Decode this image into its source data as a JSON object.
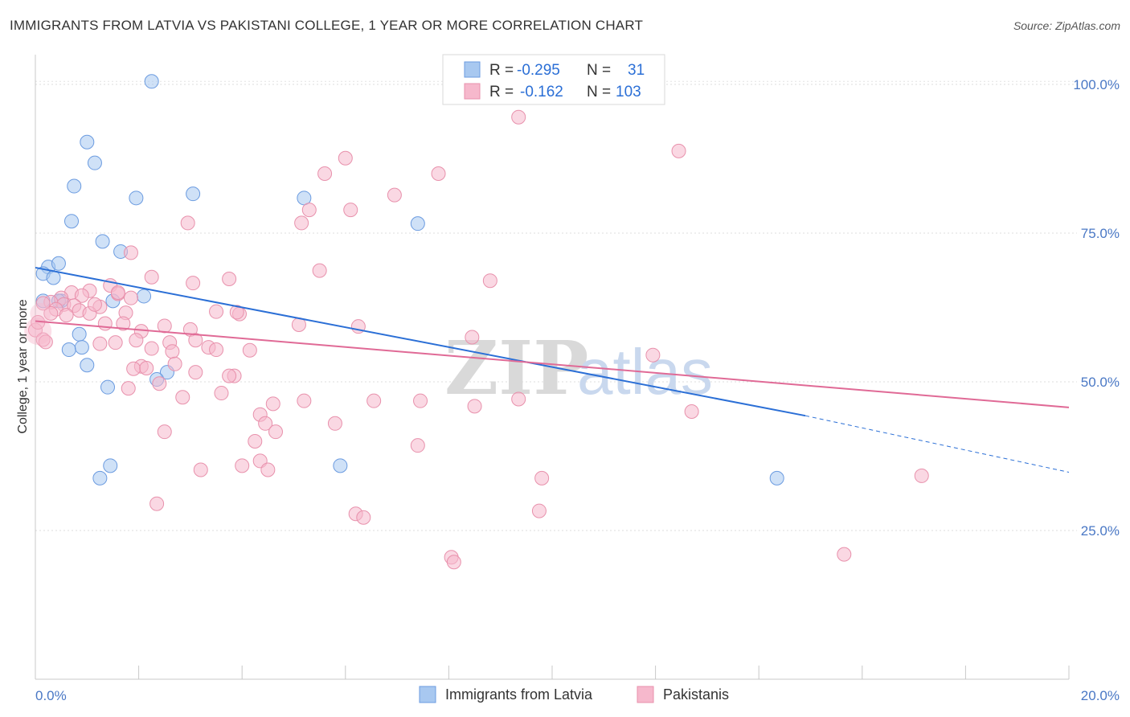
{
  "title": "IMMIGRANTS FROM LATVIA VS PAKISTANI COLLEGE, 1 YEAR OR MORE CORRELATION CHART",
  "source": "Source: ZipAtlas.com",
  "watermark": {
    "left": "ZIP",
    "right": "atlas"
  },
  "legend": {
    "rows": [
      {
        "r_label": "R =",
        "r_value": "-0.295",
        "n_label": "N =",
        "n_value": "31",
        "color": "#a8c8f0"
      },
      {
        "r_label": "R =",
        "r_value": "-0.162",
        "n_label": "N =",
        "n_value": "103",
        "color": "#f6b8cc"
      }
    ]
  },
  "bottom_legend": [
    {
      "label": "Immigrants from Latvia",
      "color": "#a8c8f0"
    },
    {
      "label": "Pakistanis",
      "color": "#f6b8cc"
    }
  ],
  "chart_data": {
    "type": "scatter",
    "ylabel": "College, 1 year or more",
    "xlabel": "",
    "xlim": [
      0,
      20
    ],
    "ylim": [
      0,
      105
    ],
    "x_ticks": [
      {
        "value": 0,
        "label": "0.0%"
      },
      {
        "value": 20,
        "label": "20.0%"
      }
    ],
    "y_ticks": [
      {
        "value": 25,
        "label": "25.0%"
      },
      {
        "value": 50,
        "label": "50.0%"
      },
      {
        "value": 75,
        "label": "75.0%"
      },
      {
        "value": 100,
        "label": "100.0%"
      }
    ],
    "grid": true,
    "series": [
      {
        "name": "Immigrants from Latvia",
        "color": "#a8c8f0",
        "stroke": "#6b9be0",
        "trend": {
          "x0": 0,
          "y0": 69.2,
          "x1": 14.9,
          "y1": 44.3,
          "dash_to_x": 20,
          "dash_to_y": 34.8,
          "color": "#2b6fd6"
        },
        "points": [
          [
            2.25,
            100.5
          ],
          [
            1.0,
            90.3
          ],
          [
            1.15,
            86.8
          ],
          [
            0.75,
            82.9
          ],
          [
            1.95,
            80.9
          ],
          [
            3.05,
            81.6
          ],
          [
            5.2,
            80.9
          ],
          [
            0.7,
            77.0
          ],
          [
            7.4,
            76.6
          ],
          [
            1.3,
            73.6
          ],
          [
            1.65,
            71.9
          ],
          [
            0.25,
            69.3
          ],
          [
            0.45,
            69.9
          ],
          [
            0.15,
            68.2
          ],
          [
            0.35,
            67.5
          ],
          [
            0.15,
            63.6
          ],
          [
            0.5,
            63.6
          ],
          [
            0.45,
            63.6
          ],
          [
            2.1,
            64.4
          ],
          [
            1.5,
            63.6
          ],
          [
            0.85,
            58.0
          ],
          [
            0.65,
            55.4
          ],
          [
            0.9,
            55.8
          ],
          [
            1.0,
            52.8
          ],
          [
            2.55,
            51.6
          ],
          [
            2.35,
            50.4
          ],
          [
            1.4,
            49.1
          ],
          [
            1.25,
            33.8
          ],
          [
            5.9,
            35.9
          ],
          [
            14.35,
            33.8
          ],
          [
            1.45,
            35.9
          ]
        ]
      },
      {
        "name": "Pakistanis",
        "color": "#f6b8cc",
        "stroke": "#e891ac",
        "trend": {
          "x0": 0,
          "y0": 60.2,
          "x1": 20,
          "y1": 45.7,
          "color": "#e06a96"
        },
        "points": [
          [
            8.3,
            98.9
          ],
          [
            10.1,
            98.9
          ],
          [
            11.15,
            98.8
          ],
          [
            9.35,
            94.5
          ],
          [
            12.45,
            88.8
          ],
          [
            6.0,
            87.6
          ],
          [
            5.6,
            85.0
          ],
          [
            7.8,
            85.0
          ],
          [
            6.95,
            81.4
          ],
          [
            5.3,
            78.9
          ],
          [
            6.1,
            78.9
          ],
          [
            2.95,
            76.7
          ],
          [
            5.15,
            76.7
          ],
          [
            1.85,
            71.7
          ],
          [
            5.5,
            68.7
          ],
          [
            2.25,
            67.6
          ],
          [
            3.75,
            67.3
          ],
          [
            8.8,
            67.0
          ],
          [
            3.05,
            66.6
          ],
          [
            1.45,
            66.2
          ],
          [
            1.05,
            65.3
          ],
          [
            0.7,
            65.0
          ],
          [
            1.6,
            64.8
          ],
          [
            0.9,
            64.5
          ],
          [
            1.85,
            64.1
          ],
          [
            0.5,
            64.1
          ],
          [
            0.3,
            63.4
          ],
          [
            0.55,
            63.0
          ],
          [
            0.75,
            62.8
          ],
          [
            1.25,
            62.6
          ],
          [
            0.4,
            62.2
          ],
          [
            0.85,
            62.0
          ],
          [
            1.05,
            61.5
          ],
          [
            1.75,
            61.6
          ],
          [
            3.5,
            61.8
          ],
          [
            3.95,
            61.4
          ],
          [
            0.6,
            61.2
          ],
          [
            0.3,
            61.5
          ],
          [
            0.0,
            58.7
          ],
          [
            1.35,
            59.8
          ],
          [
            1.7,
            59.8
          ],
          [
            2.5,
            59.4
          ],
          [
            3.0,
            58.8
          ],
          [
            2.05,
            58.5
          ],
          [
            5.1,
            59.6
          ],
          [
            6.25,
            59.3
          ],
          [
            3.9,
            61.7
          ],
          [
            0.15,
            57.1
          ],
          [
            1.25,
            56.4
          ],
          [
            1.55,
            56.6
          ],
          [
            1.95,
            57.0
          ],
          [
            2.6,
            56.6
          ],
          [
            3.1,
            57.0
          ],
          [
            4.15,
            55.3
          ],
          [
            3.35,
            55.8
          ],
          [
            3.5,
            55.4
          ],
          [
            2.65,
            55.1
          ],
          [
            2.25,
            55.6
          ],
          [
            2.7,
            53.0
          ],
          [
            2.05,
            52.6
          ],
          [
            1.9,
            52.2
          ],
          [
            3.1,
            51.6
          ],
          [
            3.85,
            51.0
          ],
          [
            3.75,
            51.0
          ],
          [
            8.45,
            57.5
          ],
          [
            11.95,
            54.5
          ],
          [
            2.4,
            49.7
          ],
          [
            1.8,
            48.9
          ],
          [
            2.85,
            47.4
          ],
          [
            3.6,
            48.1
          ],
          [
            4.35,
            44.5
          ],
          [
            4.6,
            46.3
          ],
          [
            5.2,
            46.8
          ],
          [
            6.55,
            46.8
          ],
          [
            7.45,
            46.8
          ],
          [
            8.5,
            45.9
          ],
          [
            9.35,
            47.1
          ],
          [
            12.7,
            45.0
          ],
          [
            4.45,
            43.0
          ],
          [
            4.65,
            41.6
          ],
          [
            5.8,
            43.0
          ],
          [
            2.5,
            41.6
          ],
          [
            4.25,
            40.0
          ],
          [
            7.4,
            39.3
          ],
          [
            3.2,
            35.2
          ],
          [
            4.0,
            35.9
          ],
          [
            4.35,
            36.7
          ],
          [
            4.5,
            35.2
          ],
          [
            9.8,
            33.8
          ],
          [
            17.15,
            34.2
          ],
          [
            2.35,
            29.5
          ],
          [
            6.2,
            27.8
          ],
          [
            6.35,
            27.2
          ],
          [
            9.75,
            28.3
          ],
          [
            8.05,
            20.5
          ],
          [
            8.1,
            19.7
          ],
          [
            15.65,
            21.0
          ],
          [
            0.15,
            63.2
          ],
          [
            2.15,
            52.3
          ],
          [
            1.15,
            63.0
          ],
          [
            0.05,
            60.0
          ],
          [
            1.6,
            65.0
          ],
          [
            0.2,
            56.7
          ]
        ]
      }
    ]
  }
}
